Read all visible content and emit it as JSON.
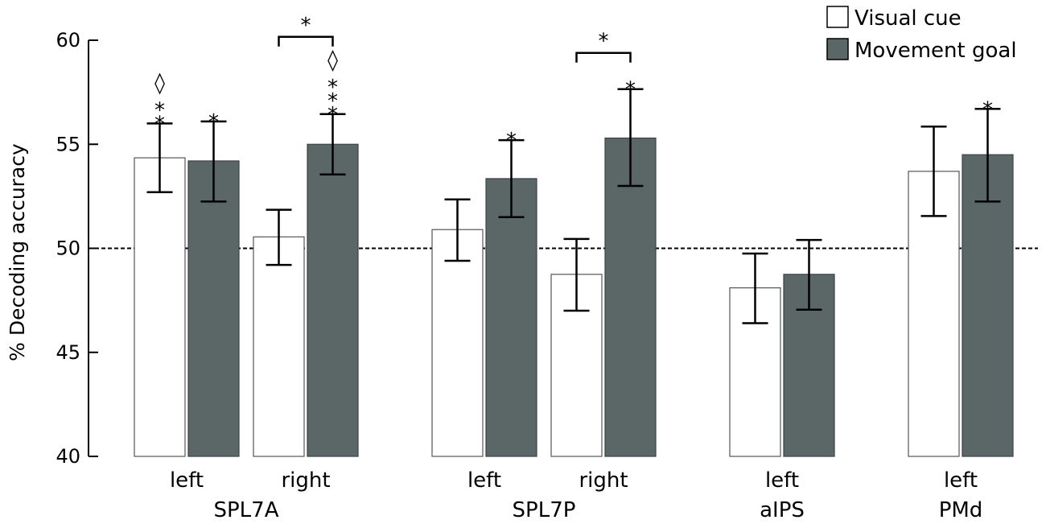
{
  "chart_data": {
    "type": "bar",
    "ylabel": "% Decoding accuracy",
    "ylim": [
      40,
      60
    ],
    "yticks": [
      40,
      45,
      50,
      55,
      60
    ],
    "chance_level": 50,
    "legend_position": "top-right",
    "series": [
      {
        "name": "Visual cue",
        "color": "#ffffff"
      },
      {
        "name": "Movement goal",
        "color": "#5b6666"
      }
    ],
    "groups": [
      {
        "region": "SPL7A",
        "hemispheres": [
          {
            "label": "left",
            "visual": {
              "value": 54.35,
              "err": [
                52.7,
                56.0
              ],
              "annotations": [
                "*",
                "*",
                "◊"
              ]
            },
            "movement": {
              "value": 54.2,
              "err": [
                52.25,
                56.1
              ],
              "annotations": [
                "*"
              ]
            }
          },
          {
            "label": "right",
            "visual": {
              "value": 50.55,
              "err": [
                49.2,
                51.85
              ],
              "annotations": []
            },
            "movement": {
              "value": 55.0,
              "err": [
                53.55,
                56.45
              ],
              "annotations": [
                "*",
                "*",
                "*",
                "◊"
              ]
            },
            "bracket": "*"
          }
        ]
      },
      {
        "region": "SPL7P",
        "hemispheres": [
          {
            "label": "left",
            "visual": {
              "value": 50.9,
              "err": [
                49.4,
                52.35
              ],
              "annotations": []
            },
            "movement": {
              "value": 53.35,
              "err": [
                51.5,
                55.2
              ],
              "annotations": [
                "*"
              ]
            }
          },
          {
            "label": "right",
            "visual": {
              "value": 48.75,
              "err": [
                47.0,
                50.45
              ],
              "annotations": []
            },
            "movement": {
              "value": 55.3,
              "err": [
                53.0,
                57.65
              ],
              "annotations": [
                "*"
              ]
            },
            "bracket": "*"
          }
        ]
      },
      {
        "region": "aIPS",
        "hemispheres": [
          {
            "label": "left",
            "visual": {
              "value": 48.1,
              "err": [
                46.4,
                49.75
              ],
              "annotations": []
            },
            "movement": {
              "value": 48.75,
              "err": [
                47.05,
                50.4
              ],
              "annotations": []
            }
          }
        ]
      },
      {
        "region": "PMd",
        "hemispheres": [
          {
            "label": "left",
            "visual": {
              "value": 53.7,
              "err": [
                51.55,
                55.85
              ],
              "annotations": []
            },
            "movement": {
              "value": 54.5,
              "err": [
                52.25,
                56.7
              ],
              "annotations": [
                "*"
              ]
            }
          }
        ]
      }
    ]
  }
}
